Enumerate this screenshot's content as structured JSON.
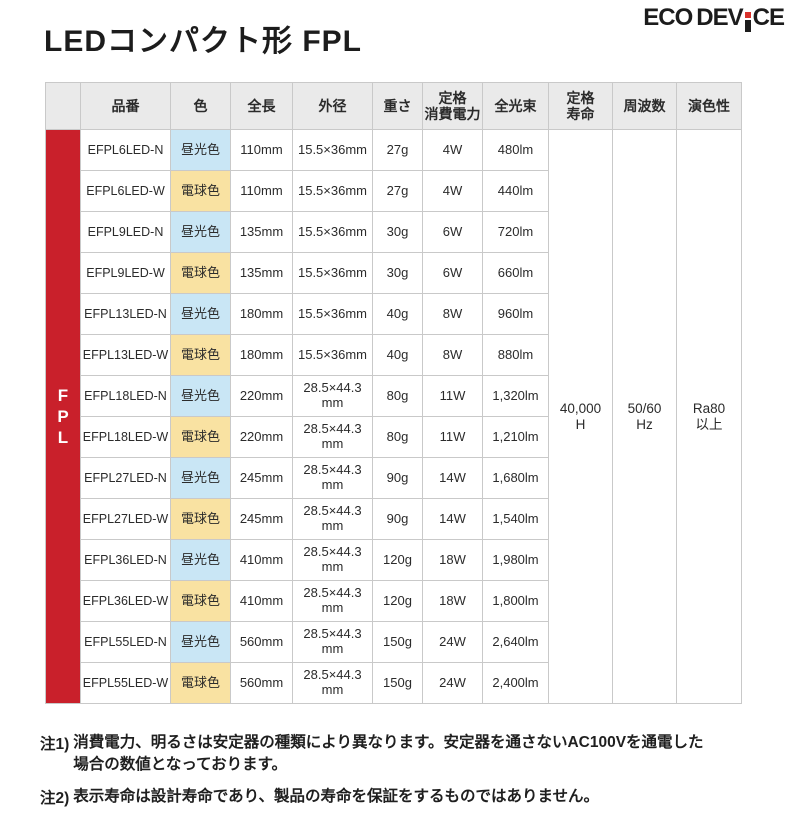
{
  "page": {
    "title": "LEDコンパクト形 FPL",
    "logo": {
      "part1": "ECO",
      "part2": "DEV",
      "part3": "CE",
      "accent_color": "#d8312b",
      "full_name": "ECO DEVICE"
    }
  },
  "table": {
    "side_label": "FPL",
    "side_color": "#c9202b",
    "headers": [
      "品番",
      "色",
      "全長",
      "外径",
      "重さ",
      "定格\n消費電力",
      "全光束",
      "定格\n寿命",
      "周波数",
      "演色性"
    ],
    "color_styles": {
      "昼光色": {
        "bg": "#c9e6f5"
      },
      "電球色": {
        "bg": "#f9e2a2"
      }
    },
    "rows": [
      {
        "model": "EFPL6LED-N",
        "color": "昼光色",
        "length": "110mm",
        "diameter": "15.5×36mm",
        "weight": "27g",
        "power": "4W",
        "flux": "480lm"
      },
      {
        "model": "EFPL6LED-W",
        "color": "電球色",
        "length": "110mm",
        "diameter": "15.5×36mm",
        "weight": "27g",
        "power": "4W",
        "flux": "440lm"
      },
      {
        "model": "EFPL9LED-N",
        "color": "昼光色",
        "length": "135mm",
        "diameter": "15.5×36mm",
        "weight": "30g",
        "power": "6W",
        "flux": "720lm"
      },
      {
        "model": "EFPL9LED-W",
        "color": "電球色",
        "length": "135mm",
        "diameter": "15.5×36mm",
        "weight": "30g",
        "power": "6W",
        "flux": "660lm"
      },
      {
        "model": "EFPL13LED-N",
        "color": "昼光色",
        "length": "180mm",
        "diameter": "15.5×36mm",
        "weight": "40g",
        "power": "8W",
        "flux": "960lm"
      },
      {
        "model": "EFPL13LED-W",
        "color": "電球色",
        "length": "180mm",
        "diameter": "15.5×36mm",
        "weight": "40g",
        "power": "8W",
        "flux": "880lm"
      },
      {
        "model": "EFPL18LED-N",
        "color": "昼光色",
        "length": "220mm",
        "diameter": "28.5×44.3\nmm",
        "weight": "80g",
        "power": "11W",
        "flux": "1,320lm"
      },
      {
        "model": "EFPL18LED-W",
        "color": "電球色",
        "length": "220mm",
        "diameter": "28.5×44.3\nmm",
        "weight": "80g",
        "power": "11W",
        "flux": "1,210lm"
      },
      {
        "model": "EFPL27LED-N",
        "color": "昼光色",
        "length": "245mm",
        "diameter": "28.5×44.3\nmm",
        "weight": "90g",
        "power": "14W",
        "flux": "1,680lm"
      },
      {
        "model": "EFPL27LED-W",
        "color": "電球色",
        "length": "245mm",
        "diameter": "28.5×44.3\nmm",
        "weight": "90g",
        "power": "14W",
        "flux": "1,540lm"
      },
      {
        "model": "EFPL36LED-N",
        "color": "昼光色",
        "length": "410mm",
        "diameter": "28.5×44.3\nmm",
        "weight": "120g",
        "power": "18W",
        "flux": "1,980lm"
      },
      {
        "model": "EFPL36LED-W",
        "color": "電球色",
        "length": "410mm",
        "diameter": "28.5×44.3\nmm",
        "weight": "120g",
        "power": "18W",
        "flux": "1,800lm"
      },
      {
        "model": "EFPL55LED-N",
        "color": "昼光色",
        "length": "560mm",
        "diameter": "28.5×44.3\nmm",
        "weight": "150g",
        "power": "24W",
        "flux": "2,640lm"
      },
      {
        "model": "EFPL55LED-W",
        "color": "電球色",
        "length": "560mm",
        "diameter": "28.5×44.3\nmm",
        "weight": "150g",
        "power": "24W",
        "flux": "2,400lm"
      }
    ],
    "merged": {
      "life": "40,000\nH",
      "freq": "50/60\nHz",
      "cri": "Ra80\n以上"
    }
  },
  "notes": [
    {
      "label": "注1)",
      "text": "消費電力、明るさは安定器の種類により異なります。安定器を通さないAC100Vを通電した\n場合の数値となっております。"
    },
    {
      "label": "注2)",
      "text": "表示寿命は設計寿命であり、製品の寿命を保証をするものではありません。"
    }
  ]
}
